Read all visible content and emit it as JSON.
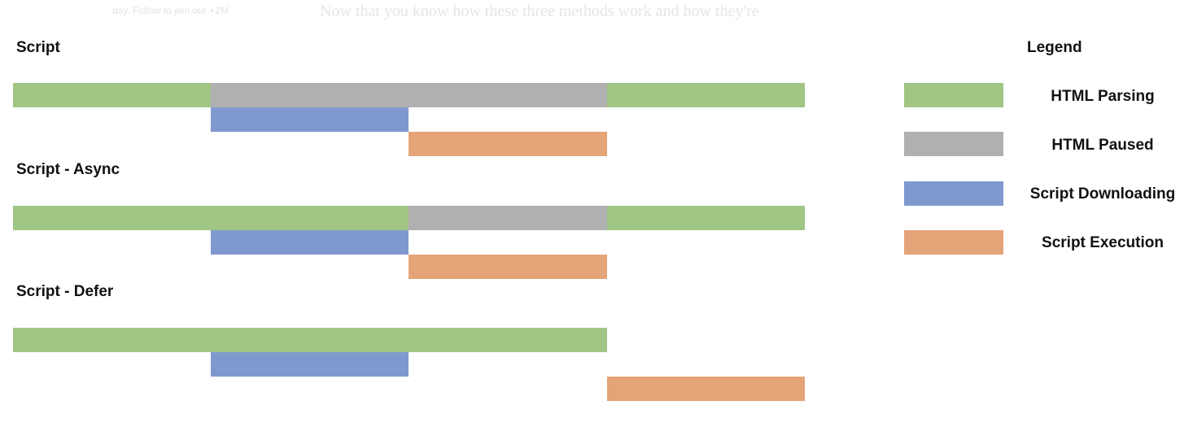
{
  "background_text": {
    "left": "day. Follow to join our +2M",
    "center": "Now that you know how these three methods work and how they're"
  },
  "colors": {
    "html_parsing": "#a0c584",
    "html_paused": "#b0b0b0",
    "script_downloading": "#7f99cf",
    "script_execution": "#e4a478"
  },
  "sections": [
    {
      "label": "Script"
    },
    {
      "label": "Script - Async"
    },
    {
      "label": "Script - Defer"
    }
  ],
  "legend": {
    "title": "Legend",
    "items": [
      {
        "label": "HTML Parsing",
        "color": "#a0c584"
      },
      {
        "label": "HTML Paused",
        "color": "#b0b0b0"
      },
      {
        "label": "Script Downloading",
        "color": "#7f99cf"
      },
      {
        "label": "Script Execution",
        "color": "#e4a478"
      }
    ]
  }
}
